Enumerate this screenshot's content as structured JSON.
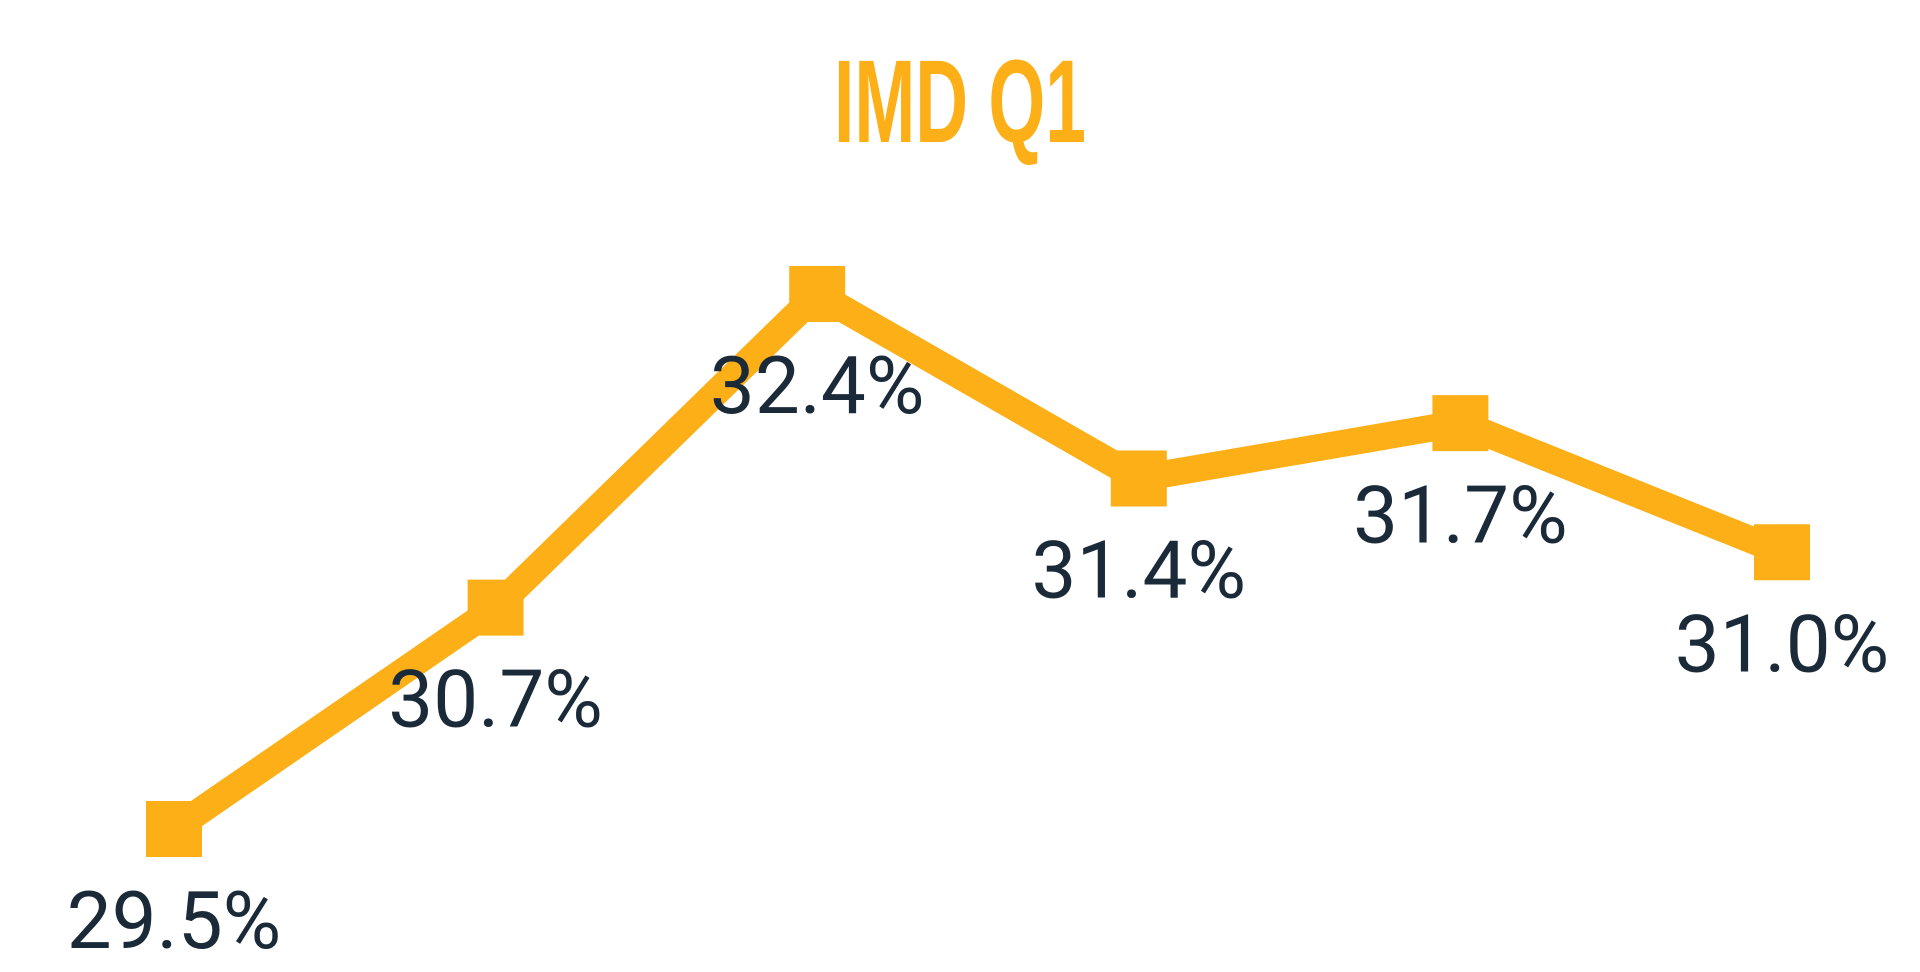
{
  "chart_data": {
    "type": "line",
    "title": "IMD Q1",
    "categories": [
      null,
      null,
      null,
      null,
      null,
      null
    ],
    "series": [
      {
        "name": null,
        "color": "#fcaf17",
        "values": [
          29.5,
          30.7,
          32.4,
          31.4,
          31.7,
          31.0
        ],
        "value_labels": [
          "29.5%",
          "30.7%",
          "32.4%",
          "31.4%",
          "31.7%",
          "31.0%"
        ]
      }
    ]
  }
}
